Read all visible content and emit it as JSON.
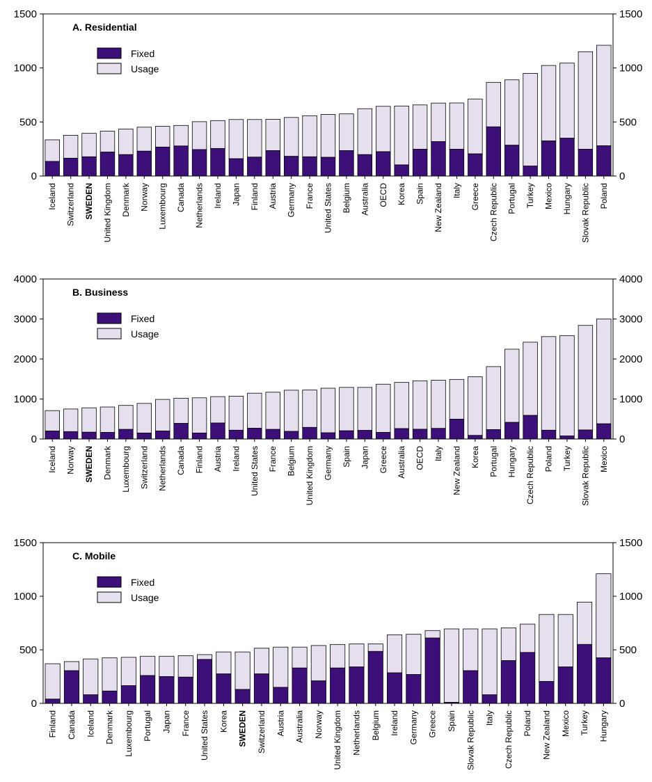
{
  "colors": {
    "fixed": "#3d0f78",
    "usage": "#e6e0ee",
    "outline": "#000000"
  },
  "chart_data": [
    {
      "type": "bar",
      "stacked": true,
      "title": "A. Residential",
      "legend": [
        "Fixed",
        "Usage"
      ],
      "legend_position": "top-left",
      "ylim": [
        0,
        1500
      ],
      "yticks": [
        0,
        500,
        1000,
        1500
      ],
      "ytick_labels": [
        "0",
        "500",
        "1000",
        "1500"
      ],
      "highlight": "SWEDEN",
      "categories": [
        "Iceland",
        "Switzerland",
        "SWEDEN",
        "United Kingdom",
        "Denmark",
        "Norway",
        "Luxembourg",
        "Canada",
        "Netherlands",
        "Ireland",
        "Japan",
        "Finland",
        "Austria",
        "Germany",
        "France",
        "United States",
        "Belgium",
        "Australia",
        "OECD",
        "Korea",
        "Spain",
        "New Zealand",
        "Italy",
        "Greece",
        "Czech Republic",
        "Portugal",
        "Turkey",
        "Mexico",
        "Hungary",
        "Slovak Republic",
        "Poland"
      ],
      "series": [
        {
          "name": "Fixed",
          "values": [
            135,
            165,
            178,
            222,
            198,
            230,
            268,
            278,
            245,
            255,
            160,
            175,
            235,
            182,
            178,
            173,
            235,
            198,
            225,
            103,
            248,
            318,
            248,
            205,
            455,
            285,
            92,
            325,
            350,
            248,
            280
          ]
        },
        {
          "name": "Usage",
          "values": [
            200,
            212,
            217,
            193,
            237,
            222,
            192,
            190,
            258,
            258,
            363,
            348,
            290,
            360,
            380,
            397,
            340,
            425,
            420,
            545,
            410,
            357,
            428,
            508,
            412,
            605,
            858,
            698,
            695,
            902,
            930
          ]
        }
      ]
    },
    {
      "type": "bar",
      "stacked": true,
      "title": "B. Business",
      "legend": [
        "Fixed",
        "Usage"
      ],
      "legend_position": "top-left",
      "ylim": [
        0,
        4000
      ],
      "yticks": [
        0,
        1000,
        2000,
        3000,
        4000
      ],
      "ytick_labels": [
        "0",
        "1000",
        "2000",
        "3000",
        "4000"
      ],
      "highlight": "SWEDEN",
      "categories": [
        "Iceland",
        "Norway",
        "SWEDEN",
        "Denmark",
        "Luxembourg",
        "Switzerland",
        "Netherlands",
        "Canada",
        "Finland",
        "Austria",
        "Ireland",
        "United States",
        "France",
        "Belgium",
        "United Kingdom",
        "Germany",
        "Spain",
        "Japan",
        "Greece",
        "Australia",
        "OECD",
        "Italy",
        "New Zealand",
        "Korea",
        "Portugal",
        "Hungary",
        "Czech Republic",
        "Poland",
        "Turkey",
        "Slovak Republic",
        "Mexico"
      ],
      "series": [
        {
          "name": "Fixed",
          "values": [
            200,
            185,
            170,
            165,
            240,
            150,
            200,
            390,
            150,
            400,
            220,
            270,
            240,
            190,
            290,
            155,
            205,
            215,
            165,
            260,
            245,
            265,
            495,
            90,
            235,
            415,
            590,
            220,
            75,
            225,
            380
          ]
        },
        {
          "name": "Usage",
          "values": [
            510,
            565,
            610,
            635,
            600,
            740,
            790,
            630,
            880,
            660,
            850,
            875,
            930,
            1030,
            935,
            1115,
            1085,
            1075,
            1205,
            1155,
            1210,
            1205,
            995,
            1465,
            1575,
            1830,
            1830,
            2340,
            2510,
            2615,
            2620
          ]
        }
      ]
    },
    {
      "type": "bar",
      "stacked": true,
      "title": "C. Mobile",
      "legend": [
        "Fixed",
        "Usage"
      ],
      "legend_position": "top-left",
      "ylim": [
        0,
        1500
      ],
      "yticks": [
        0,
        500,
        1000,
        1500
      ],
      "ytick_labels": [
        "0",
        "500",
        "1000",
        "1500"
      ],
      "highlight": "SWEDEN",
      "categories": [
        "Finland",
        "Canada",
        "Iceland",
        "Denmark",
        "Luxembourg",
        "Portugal",
        "Japan",
        "France",
        "United States",
        "Korea",
        "SWEDEN",
        "Switzerland",
        "Austria",
        "Australia",
        "Norway",
        "United Kingdom",
        "Netherlands",
        "Belgium",
        "Ireland",
        "Germany",
        "Greece",
        "Spain",
        "Slovak Republic",
        "Italy",
        "Czech Republic",
        "Poland",
        "New Zealand",
        "Mexico",
        "Turkey",
        "Hungary"
      ],
      "series": [
        {
          "name": "Fixed",
          "values": [
            40,
            305,
            80,
            115,
            165,
            260,
            250,
            245,
            410,
            275,
            130,
            275,
            150,
            330,
            210,
            330,
            340,
            485,
            285,
            270,
            610,
            10,
            305,
            80,
            400,
            475,
            205,
            340,
            550,
            425
          ]
        },
        {
          "name": "Usage",
          "values": [
            330,
            85,
            335,
            310,
            265,
            180,
            190,
            200,
            45,
            205,
            350,
            240,
            375,
            195,
            330,
            220,
            215,
            70,
            355,
            375,
            70,
            685,
            390,
            615,
            305,
            265,
            625,
            490,
            395,
            785
          ]
        }
      ]
    }
  ]
}
